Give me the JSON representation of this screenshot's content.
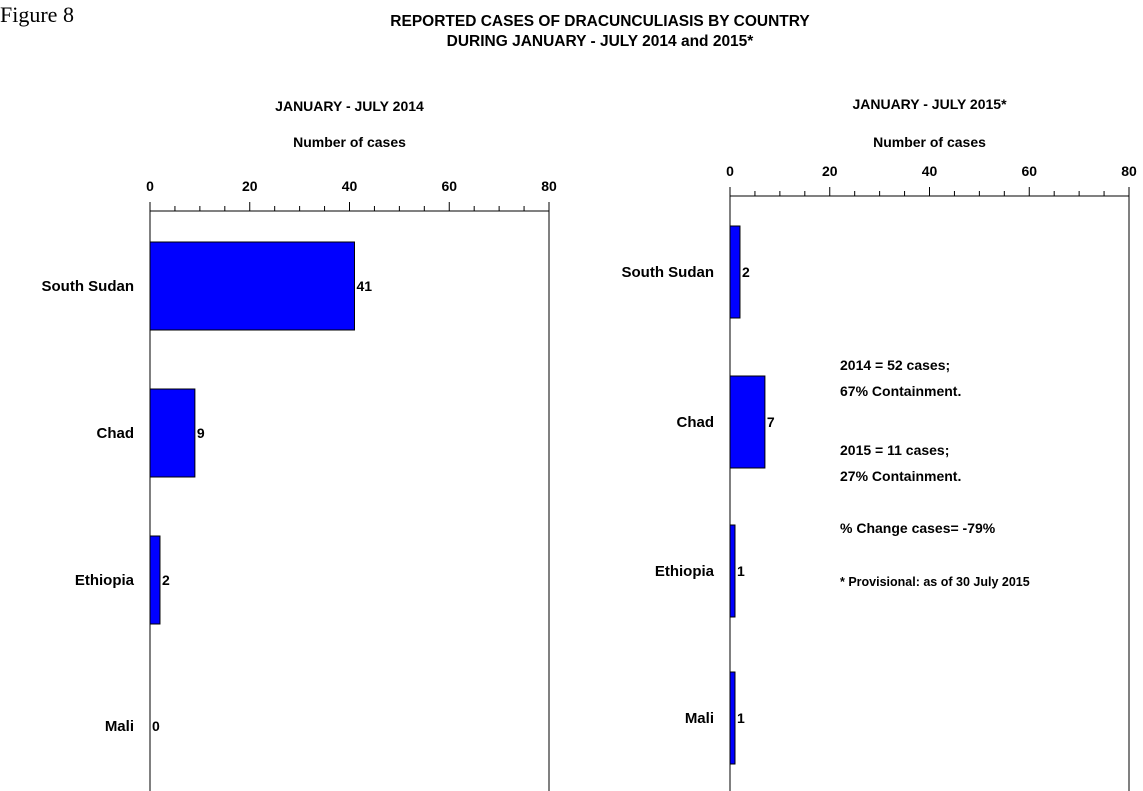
{
  "figure_label": "Figure 8",
  "title_line1": "REPORTED CASES OF DRACUNCULIASIS BY COUNTRY",
  "title_line2": "DURING JANUARY - JULY 2014 and 2015*",
  "colors": {
    "bar": "#0000ff",
    "bar_stroke": "#000000",
    "axis": "#000000"
  },
  "chart_data": [
    {
      "type": "bar",
      "orientation": "horizontal",
      "title": "JANUARY - JULY 2014",
      "xlabel": "Number of cases",
      "xlim": [
        0,
        80
      ],
      "major_ticks": [
        0,
        20,
        40,
        60,
        80
      ],
      "minor_step": 5,
      "categories": [
        "South Sudan",
        "Chad",
        "Ethiopia",
        "Mali"
      ],
      "values": [
        41,
        9,
        2,
        0
      ],
      "data_labels": [
        "41",
        "9",
        "2",
        "0"
      ]
    },
    {
      "type": "bar",
      "orientation": "horizontal",
      "title": "JANUARY - JULY 2015*",
      "xlabel": "Number of cases",
      "xlim": [
        0,
        80
      ],
      "major_ticks": [
        0,
        20,
        40,
        60,
        80
      ],
      "minor_step": 5,
      "categories": [
        "South Sudan",
        "Chad",
        "Ethiopia",
        "Mali"
      ],
      "values": [
        2,
        7,
        1,
        1
      ],
      "data_labels": [
        "2",
        "7",
        "1",
        "1"
      ]
    }
  ],
  "annotations": [
    "2014 = 52 cases;",
    "67% Containment.",
    "2015 = 11 cases;",
    "27% Containment.",
    "% Change cases= -79%",
    "* Provisional: as of 30 July 2015"
  ]
}
